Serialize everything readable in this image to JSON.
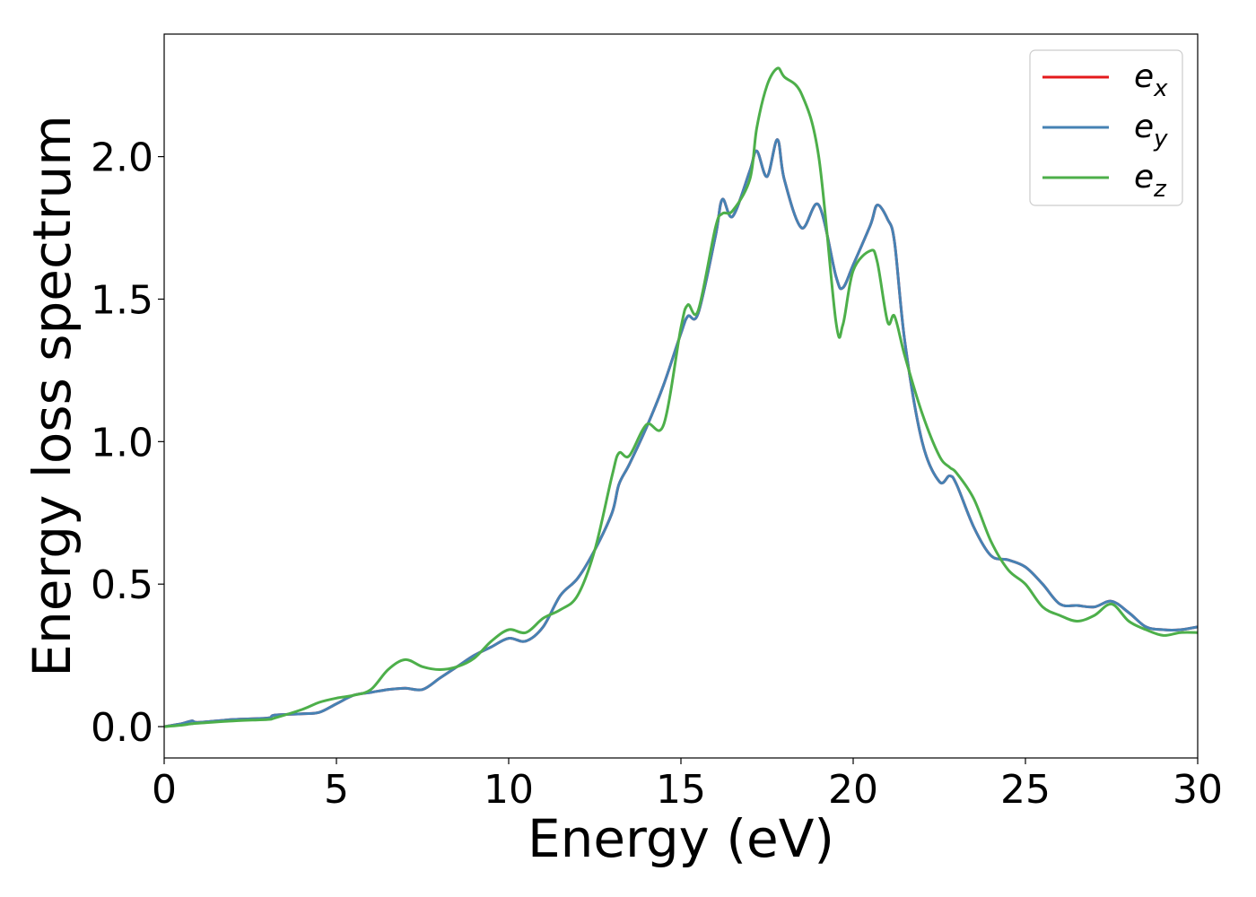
{
  "chart_data": {
    "type": "line",
    "xlabel": "Energy (eV)",
    "ylabel": "Energy loss spectrum",
    "xlim": [
      0,
      30
    ],
    "ylim": [
      -0.11,
      2.43
    ],
    "xticks": [
      "0",
      "5",
      "10",
      "15",
      "20",
      "25",
      "30"
    ],
    "yticks": [
      "0.0",
      "0.5",
      "1.0",
      "1.5",
      "2.0"
    ],
    "grid": false,
    "legend_position": "top-right",
    "x": [
      0,
      0.5,
      0.8,
      1.0,
      2.0,
      3.0,
      3.2,
      4.0,
      4.5,
      5.0,
      5.5,
      6.0,
      6.5,
      7.0,
      7.5,
      8.0,
      8.5,
      9.0,
      9.5,
      10.0,
      10.5,
      11.0,
      11.5,
      12.0,
      12.5,
      13.0,
      13.2,
      13.5,
      14.0,
      14.5,
      15.0,
      15.2,
      15.5,
      16.0,
      16.2,
      16.5,
      17.0,
      17.2,
      17.5,
      17.8,
      18.0,
      18.5,
      19.0,
      19.5,
      19.7,
      20.0,
      20.5,
      20.7,
      21.0,
      21.2,
      21.5,
      22.0,
      22.5,
      22.8,
      23.0,
      23.5,
      24.0,
      24.5,
      25.0,
      25.5,
      26.0,
      26.5,
      27.0,
      27.5,
      28.0,
      28.5,
      29.0,
      29.5,
      30.0
    ],
    "series": [
      {
        "name": "e_x",
        "label_base": "e",
        "label_sub": "x",
        "color": "#e41a1c",
        "y": [
          0.0,
          0.01,
          0.02,
          0.015,
          0.025,
          0.03,
          0.04,
          0.045,
          0.05,
          0.08,
          0.11,
          0.12,
          0.13,
          0.135,
          0.13,
          0.17,
          0.21,
          0.25,
          0.28,
          0.31,
          0.3,
          0.35,
          0.46,
          0.52,
          0.62,
          0.75,
          0.85,
          0.92,
          1.05,
          1.2,
          1.38,
          1.44,
          1.45,
          1.72,
          1.85,
          1.79,
          1.95,
          2.02,
          1.93,
          2.06,
          1.92,
          1.75,
          1.83,
          1.58,
          1.54,
          1.62,
          1.76,
          1.83,
          1.78,
          1.7,
          1.35,
          1.0,
          0.86,
          0.88,
          0.85,
          0.7,
          0.6,
          0.585,
          0.56,
          0.5,
          0.43,
          0.425,
          0.42,
          0.44,
          0.4,
          0.35,
          0.34,
          0.34,
          0.35
        ]
      },
      {
        "name": "e_y",
        "label_base": "e",
        "label_sub": "y",
        "color": "#4682b4",
        "y": [
          0.0,
          0.01,
          0.02,
          0.015,
          0.025,
          0.03,
          0.04,
          0.045,
          0.05,
          0.08,
          0.11,
          0.12,
          0.13,
          0.135,
          0.13,
          0.17,
          0.21,
          0.25,
          0.28,
          0.31,
          0.3,
          0.35,
          0.46,
          0.52,
          0.62,
          0.75,
          0.85,
          0.92,
          1.05,
          1.2,
          1.38,
          1.44,
          1.45,
          1.72,
          1.85,
          1.79,
          1.95,
          2.02,
          1.93,
          2.06,
          1.92,
          1.75,
          1.83,
          1.58,
          1.54,
          1.62,
          1.76,
          1.83,
          1.78,
          1.7,
          1.35,
          1.0,
          0.86,
          0.88,
          0.85,
          0.7,
          0.6,
          0.585,
          0.56,
          0.5,
          0.43,
          0.425,
          0.42,
          0.44,
          0.4,
          0.35,
          0.34,
          0.34,
          0.35
        ]
      },
      {
        "name": "e_z",
        "label_base": "e",
        "label_sub": "z",
        "color": "#4daf4a",
        "y": [
          0.0,
          0.005,
          0.01,
          0.012,
          0.02,
          0.025,
          0.03,
          0.06,
          0.085,
          0.1,
          0.11,
          0.13,
          0.2,
          0.235,
          0.21,
          0.2,
          0.21,
          0.24,
          0.3,
          0.34,
          0.33,
          0.38,
          0.41,
          0.46,
          0.62,
          0.88,
          0.96,
          0.95,
          1.06,
          1.06,
          1.4,
          1.48,
          1.46,
          1.75,
          1.8,
          1.81,
          1.92,
          2.1,
          2.25,
          2.31,
          2.28,
          2.22,
          2.0,
          1.42,
          1.41,
          1.6,
          1.67,
          1.63,
          1.42,
          1.44,
          1.3,
          1.1,
          0.95,
          0.91,
          0.89,
          0.8,
          0.65,
          0.55,
          0.5,
          0.42,
          0.39,
          0.37,
          0.39,
          0.43,
          0.37,
          0.34,
          0.32,
          0.33,
          0.33
        ]
      }
    ]
  }
}
